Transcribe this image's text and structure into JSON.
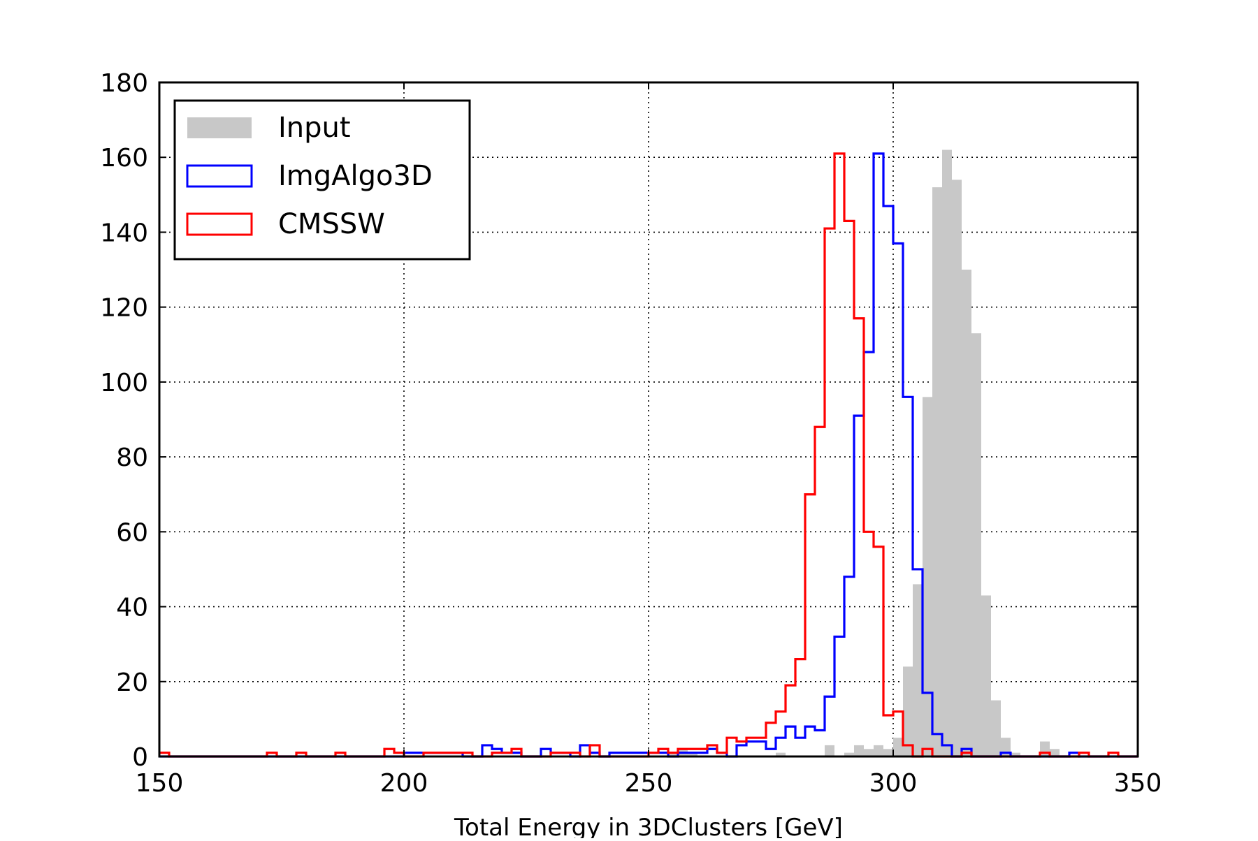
{
  "chart_data": {
    "type": "histogram",
    "xlabel": "Total Energy in 3DClusters [GeV]",
    "ylabel": "",
    "xlim": [
      150,
      350
    ],
    "ylim": [
      0,
      180
    ],
    "xticks": [
      150,
      200,
      250,
      300,
      350
    ],
    "yticks": [
      0,
      20,
      40,
      60,
      80,
      100,
      120,
      140,
      160,
      180
    ],
    "grid": true,
    "legend_position": "top-left",
    "bin_width": 2,
    "series": [
      {
        "name": "Input",
        "style": "filled",
        "color": "#c8c8c8",
        "bins": [
          [
            254,
            1
          ],
          [
            256,
            2
          ],
          [
            258,
            1
          ],
          [
            276,
            1
          ],
          [
            286,
            3
          ],
          [
            290,
            1
          ],
          [
            292,
            3
          ],
          [
            294,
            2
          ],
          [
            296,
            3
          ],
          [
            298,
            2
          ],
          [
            300,
            5
          ],
          [
            302,
            24
          ],
          [
            304,
            46
          ],
          [
            306,
            96
          ],
          [
            308,
            152
          ],
          [
            310,
            162
          ],
          [
            312,
            154
          ],
          [
            314,
            130
          ],
          [
            316,
            113
          ],
          [
            318,
            43
          ],
          [
            320,
            15
          ],
          [
            322,
            5
          ],
          [
            324,
            1
          ],
          [
            330,
            4
          ],
          [
            332,
            2
          ]
        ]
      },
      {
        "name": "ImgAlgo3D",
        "style": "step",
        "color": "#0000ff",
        "bins": [
          [
            200,
            1
          ],
          [
            202,
            1
          ],
          [
            204,
            1
          ],
          [
            206,
            1
          ],
          [
            208,
            1
          ],
          [
            210,
            1
          ],
          [
            216,
            3
          ],
          [
            218,
            2
          ],
          [
            220,
            1
          ],
          [
            222,
            1
          ],
          [
            228,
            2
          ],
          [
            230,
            1
          ],
          [
            232,
            1
          ],
          [
            236,
            3
          ],
          [
            238,
            1
          ],
          [
            242,
            1
          ],
          [
            244,
            1
          ],
          [
            246,
            1
          ],
          [
            248,
            1
          ],
          [
            250,
            1
          ],
          [
            252,
            1
          ],
          [
            256,
            1
          ],
          [
            258,
            1
          ],
          [
            260,
            1
          ],
          [
            262,
            2
          ],
          [
            264,
            1
          ],
          [
            268,
            3
          ],
          [
            270,
            4
          ],
          [
            272,
            4
          ],
          [
            274,
            2
          ],
          [
            276,
            5
          ],
          [
            278,
            8
          ],
          [
            280,
            5
          ],
          [
            282,
            8
          ],
          [
            284,
            7
          ],
          [
            286,
            16
          ],
          [
            288,
            32
          ],
          [
            290,
            48
          ],
          [
            292,
            91
          ],
          [
            294,
            108
          ],
          [
            296,
            161
          ],
          [
            298,
            147
          ],
          [
            300,
            137
          ],
          [
            302,
            96
          ],
          [
            304,
            50
          ],
          [
            306,
            17
          ],
          [
            308,
            6
          ],
          [
            310,
            3
          ],
          [
            314,
            2
          ],
          [
            322,
            1
          ],
          [
            336,
            1
          ]
        ]
      },
      {
        "name": "CMSSW",
        "style": "step",
        "color": "#ff0000",
        "bins": [
          [
            150,
            1
          ],
          [
            172,
            1
          ],
          [
            178,
            1
          ],
          [
            186,
            1
          ],
          [
            196,
            2
          ],
          [
            198,
            1
          ],
          [
            204,
            1
          ],
          [
            206,
            1
          ],
          [
            208,
            1
          ],
          [
            210,
            1
          ],
          [
            212,
            1
          ],
          [
            218,
            1
          ],
          [
            220,
            1
          ],
          [
            222,
            2
          ],
          [
            230,
            1
          ],
          [
            232,
            1
          ],
          [
            234,
            1
          ],
          [
            238,
            3
          ],
          [
            250,
            1
          ],
          [
            252,
            2
          ],
          [
            254,
            1
          ],
          [
            256,
            2
          ],
          [
            258,
            2
          ],
          [
            260,
            2
          ],
          [
            262,
            3
          ],
          [
            264,
            1
          ],
          [
            266,
            5
          ],
          [
            268,
            4
          ],
          [
            270,
            5
          ],
          [
            272,
            5
          ],
          [
            274,
            9
          ],
          [
            276,
            12
          ],
          [
            278,
            19
          ],
          [
            280,
            26
          ],
          [
            282,
            70
          ],
          [
            284,
            88
          ],
          [
            286,
            141
          ],
          [
            288,
            161
          ],
          [
            290,
            143
          ],
          [
            292,
            117
          ],
          [
            294,
            60
          ],
          [
            296,
            56
          ],
          [
            298,
            11
          ],
          [
            300,
            12
          ],
          [
            302,
            3
          ],
          [
            306,
            2
          ],
          [
            314,
            1
          ],
          [
            330,
            1
          ],
          [
            338,
            1
          ],
          [
            344,
            1
          ]
        ]
      }
    ]
  }
}
